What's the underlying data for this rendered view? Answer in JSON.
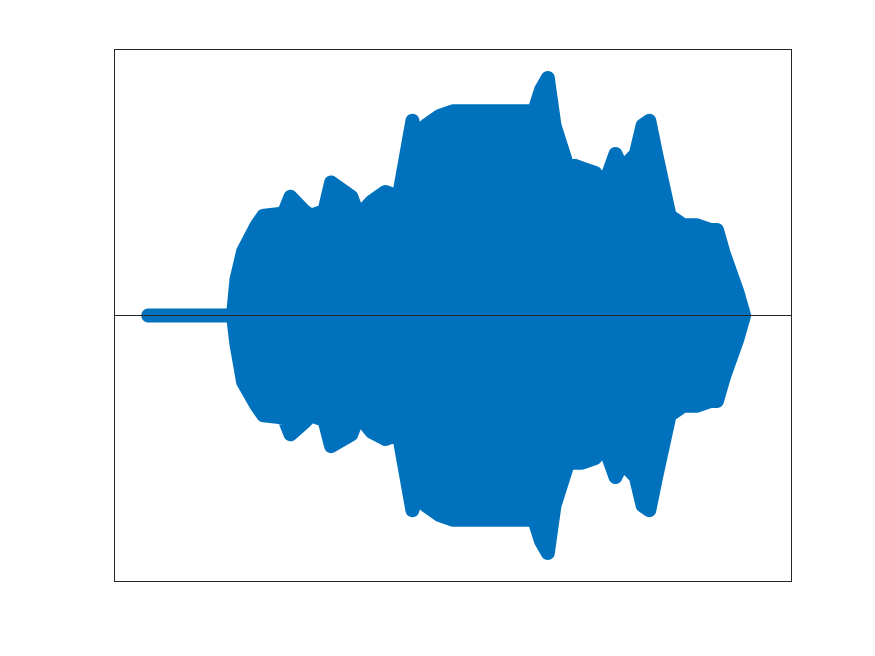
{
  "chart_data": {
    "type": "area",
    "title": "",
    "xlabel": "",
    "ylabel": "",
    "xlim": [
      0,
      100
    ],
    "ylim": [
      -1.12,
      1.12
    ],
    "grid": false,
    "legend": "none",
    "baseline": 0,
    "series": [
      {
        "color": "#0072BD",
        "envelope": {
          "x": [
            5,
            17.5,
            18,
            19,
            21,
            22,
            25,
            26,
            28,
            29,
            31,
            32,
            35,
            36,
            38,
            40,
            42,
            44,
            45,
            46,
            48,
            50,
            55,
            62,
            63,
            64,
            65,
            67,
            68,
            69,
            71,
            72,
            73,
            74,
            75,
            77,
            78,
            79,
            80,
            82,
            84,
            86,
            88,
            89,
            90,
            92,
            93
          ],
          "upper": [
            0.0,
            0.0,
            0.15,
            0.27,
            0.38,
            0.42,
            0.43,
            0.5,
            0.44,
            0.42,
            0.44,
            0.56,
            0.5,
            0.42,
            0.48,
            0.52,
            0.5,
            0.82,
            0.7,
            0.8,
            0.84,
            0.86,
            0.86,
            0.86,
            0.95,
            1.0,
            0.8,
            0.62,
            0.63,
            0.62,
            0.6,
            0.56,
            0.6,
            0.68,
            0.62,
            0.68,
            0.8,
            0.82,
            0.68,
            0.42,
            0.38,
            0.38,
            0.36,
            0.36,
            0.26,
            0.1,
            0.0
          ],
          "lower": [
            0.0,
            0.0,
            -0.12,
            -0.28,
            -0.38,
            -0.42,
            -0.43,
            -0.5,
            -0.45,
            -0.42,
            -0.44,
            -0.55,
            -0.5,
            -0.42,
            -0.49,
            -0.52,
            -0.5,
            -0.82,
            -0.72,
            -0.8,
            -0.84,
            -0.86,
            -0.86,
            -0.86,
            -0.95,
            -1.0,
            -0.8,
            -0.62,
            -0.62,
            -0.62,
            -0.6,
            -0.56,
            -0.6,
            -0.68,
            -0.62,
            -0.68,
            -0.8,
            -0.82,
            -0.68,
            -0.42,
            -0.38,
            -0.38,
            -0.36,
            -0.36,
            -0.26,
            -0.1,
            0.0
          ]
        }
      }
    ]
  }
}
